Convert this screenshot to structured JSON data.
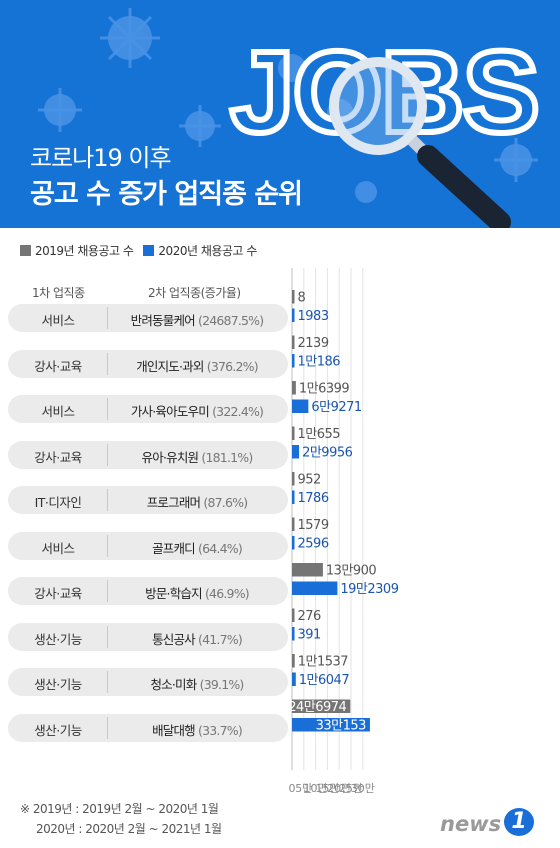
{
  "header": {
    "logo_text": "JOBS",
    "title_line1": "코로나19 이후",
    "title_line2": "공고 수 증가 업직종 순위",
    "bg_color": "#1573d6"
  },
  "legend": [
    {
      "label": "2019년 채용공고 수",
      "color": "#757575"
    },
    {
      "label": "2020년 채용공고 수",
      "color": "#1a6ed8"
    }
  ],
  "columns": {
    "primary": "1차 업직종",
    "secondary": "2차 업직종(증가율)"
  },
  "chart_data": {
    "type": "bar",
    "orientation": "horizontal",
    "unit": "만",
    "xlim": [
      0,
      330000
    ],
    "x_ticks": [
      "0",
      "5만",
      "10만",
      "15만",
      "20만",
      "25만",
      "30만"
    ],
    "categories": [
      {
        "primary": "서비스",
        "secondary": "반려동물케어",
        "rate": "(24687.5%)"
      },
      {
        "primary": "강사·교육",
        "secondary": "개인지도·과외",
        "rate": "(376.2%)"
      },
      {
        "primary": "서비스",
        "secondary": "가사·육아도우미",
        "rate": "(322.4%)"
      },
      {
        "primary": "강사·교육",
        "secondary": "유아·유치원",
        "rate": "(181.1%)"
      },
      {
        "primary": "IT·디자인",
        "secondary": "프로그래머",
        "rate": "(87.6%)"
      },
      {
        "primary": "서비스",
        "secondary": "골프캐디",
        "rate": "(64.4%)"
      },
      {
        "primary": "강사·교육",
        "secondary": "방문·학습지",
        "rate": "(46.9%)"
      },
      {
        "primary": "생산·기능",
        "secondary": "통신공사",
        "rate": "(41.7%)"
      },
      {
        "primary": "생산·기능",
        "secondary": "청소·미화",
        "rate": "(39.1%)"
      },
      {
        "primary": "생산·기능",
        "secondary": "배달대행",
        "rate": "(33.7%)"
      }
    ],
    "series": [
      {
        "name": "2019년 채용공고 수",
        "color": "#757575",
        "values": [
          8,
          2139,
          16399,
          10655,
          952,
          1579,
          130900,
          276,
          11537,
          246974
        ],
        "labels": [
          "8",
          "2139",
          "1만6399",
          "1만655",
          "952",
          "1579",
          "13만900",
          "276",
          "1만1537",
          "24만6974"
        ]
      },
      {
        "name": "2020년 채용공고 수",
        "color": "#1a6ed8",
        "values": [
          1983,
          10186,
          69271,
          29956,
          1786,
          2596,
          192309,
          391,
          16047,
          330153
        ],
        "labels": [
          "1983",
          "1만186",
          "6만9271",
          "2만9956",
          "1786",
          "2596",
          "19만2309",
          "391",
          "1만6047",
          "33만153"
        ]
      }
    ]
  },
  "footnote": {
    "line1": "※ 2019년 : 2019년 2월 ~ 2020년 1월",
    "line2": "2020년 : 2020년 2월 ~ 2021년 1월"
  },
  "brand": {
    "text": "news",
    "badge": "1"
  }
}
